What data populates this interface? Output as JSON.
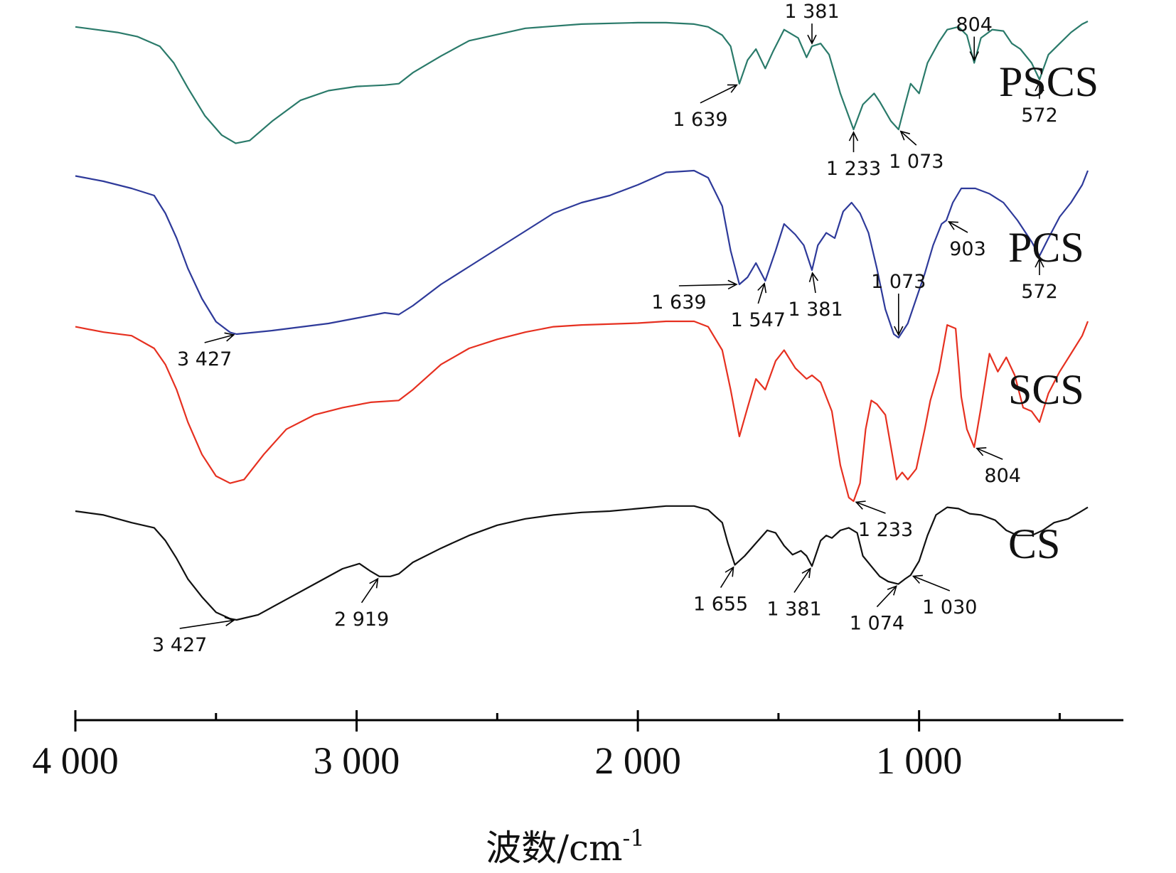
{
  "chart_data": {
    "type": "line",
    "xlabel": "波数/cm",
    "xlabel_sup": "-1",
    "xlim": [
      4000,
      400
    ],
    "reversed_x": true,
    "x_ticks": [
      {
        "value": 4000,
        "label": "4 000"
      },
      {
        "value": 3000,
        "label": "3 000"
      },
      {
        "value": 2000,
        "label": "2 000"
      },
      {
        "value": 1000,
        "label": "1 000"
      }
    ],
    "minor_ticks": [
      3500,
      2500,
      1500,
      500
    ],
    "grid": false,
    "y_axis_shown": false,
    "series": [
      {
        "name": "PSCS",
        "color": "#2a7a6a",
        "points": [
          [
            4000,
            0.96
          ],
          [
            3850,
            0.92
          ],
          [
            3780,
            0.89
          ],
          [
            3700,
            0.82
          ],
          [
            3650,
            0.7
          ],
          [
            3600,
            0.52
          ],
          [
            3540,
            0.32
          ],
          [
            3480,
            0.18
          ],
          [
            3430,
            0.12
          ],
          [
            3380,
            0.14
          ],
          [
            3300,
            0.28
          ],
          [
            3200,
            0.43
          ],
          [
            3100,
            0.5
          ],
          [
            3000,
            0.53
          ],
          [
            2900,
            0.54
          ],
          [
            2850,
            0.55
          ],
          [
            2800,
            0.63
          ],
          [
            2700,
            0.75
          ],
          [
            2600,
            0.86
          ],
          [
            2400,
            0.95
          ],
          [
            2200,
            0.98
          ],
          [
            2000,
            0.99
          ],
          [
            1900,
            0.99
          ],
          [
            1800,
            0.98
          ],
          [
            1750,
            0.96
          ],
          [
            1700,
            0.9
          ],
          [
            1670,
            0.82
          ],
          [
            1639,
            0.55
          ],
          [
            1610,
            0.72
          ],
          [
            1580,
            0.8
          ],
          [
            1547,
            0.66
          ],
          [
            1520,
            0.78
          ],
          [
            1480,
            0.94
          ],
          [
            1430,
            0.88
          ],
          [
            1400,
            0.74
          ],
          [
            1381,
            0.82
          ],
          [
            1350,
            0.84
          ],
          [
            1320,
            0.76
          ],
          [
            1280,
            0.48
          ],
          [
            1233,
            0.22
          ],
          [
            1200,
            0.4
          ],
          [
            1160,
            0.48
          ],
          [
            1140,
            0.42
          ],
          [
            1100,
            0.28
          ],
          [
            1073,
            0.22
          ],
          [
            1050,
            0.4
          ],
          [
            1030,
            0.55
          ],
          [
            1000,
            0.48
          ],
          [
            970,
            0.7
          ],
          [
            930,
            0.85
          ],
          [
            900,
            0.94
          ],
          [
            860,
            0.96
          ],
          [
            830,
            0.9
          ],
          [
            804,
            0.7
          ],
          [
            780,
            0.88
          ],
          [
            740,
            0.94
          ],
          [
            700,
            0.93
          ],
          [
            670,
            0.84
          ],
          [
            640,
            0.8
          ],
          [
            600,
            0.7
          ],
          [
            572,
            0.58
          ],
          [
            540,
            0.76
          ],
          [
            500,
            0.84
          ],
          [
            460,
            0.92
          ],
          [
            420,
            0.98
          ],
          [
            400,
            1.0
          ]
        ]
      },
      {
        "name": "PCS",
        "color": "#2e3a9a",
        "points": [
          [
            4000,
            0.97
          ],
          [
            3900,
            0.94
          ],
          [
            3800,
            0.9
          ],
          [
            3720,
            0.86
          ],
          [
            3680,
            0.76
          ],
          [
            3640,
            0.62
          ],
          [
            3600,
            0.45
          ],
          [
            3550,
            0.28
          ],
          [
            3500,
            0.15
          ],
          [
            3450,
            0.09
          ],
          [
            3427,
            0.08
          ],
          [
            3300,
            0.1
          ],
          [
            3100,
            0.14
          ],
          [
            3000,
            0.17
          ],
          [
            2900,
            0.2
          ],
          [
            2850,
            0.19
          ],
          [
            2800,
            0.24
          ],
          [
            2700,
            0.36
          ],
          [
            2600,
            0.46
          ],
          [
            2500,
            0.56
          ],
          [
            2400,
            0.66
          ],
          [
            2300,
            0.76
          ],
          [
            2200,
            0.82
          ],
          [
            2100,
            0.86
          ],
          [
            2000,
            0.92
          ],
          [
            1900,
            0.99
          ],
          [
            1800,
            1.0
          ],
          [
            1750,
            0.96
          ],
          [
            1700,
            0.8
          ],
          [
            1670,
            0.55
          ],
          [
            1639,
            0.36
          ],
          [
            1610,
            0.4
          ],
          [
            1580,
            0.48
          ],
          [
            1547,
            0.38
          ],
          [
            1510,
            0.55
          ],
          [
            1480,
            0.7
          ],
          [
            1440,
            0.64
          ],
          [
            1410,
            0.58
          ],
          [
            1381,
            0.44
          ],
          [
            1360,
            0.58
          ],
          [
            1330,
            0.65
          ],
          [
            1300,
            0.62
          ],
          [
            1270,
            0.77
          ],
          [
            1240,
            0.82
          ],
          [
            1210,
            0.76
          ],
          [
            1180,
            0.65
          ],
          [
            1150,
            0.45
          ],
          [
            1120,
            0.22
          ],
          [
            1090,
            0.08
          ],
          [
            1073,
            0.06
          ],
          [
            1040,
            0.14
          ],
          [
            1010,
            0.28
          ],
          [
            980,
            0.42
          ],
          [
            950,
            0.58
          ],
          [
            920,
            0.7
          ],
          [
            903,
            0.72
          ],
          [
            880,
            0.82
          ],
          [
            850,
            0.9
          ],
          [
            800,
            0.9
          ],
          [
            750,
            0.87
          ],
          [
            700,
            0.82
          ],
          [
            650,
            0.72
          ],
          [
            600,
            0.6
          ],
          [
            572,
            0.52
          ],
          [
            540,
            0.62
          ],
          [
            500,
            0.74
          ],
          [
            460,
            0.82
          ],
          [
            420,
            0.92
          ],
          [
            400,
            1.0
          ]
        ]
      },
      {
        "name": "SCS",
        "color": "#e63020",
        "points": [
          [
            4000,
            0.97
          ],
          [
            3900,
            0.94
          ],
          [
            3800,
            0.92
          ],
          [
            3720,
            0.85
          ],
          [
            3680,
            0.76
          ],
          [
            3640,
            0.62
          ],
          [
            3600,
            0.44
          ],
          [
            3550,
            0.26
          ],
          [
            3500,
            0.14
          ],
          [
            3450,
            0.1
          ],
          [
            3400,
            0.12
          ],
          [
            3330,
            0.26
          ],
          [
            3250,
            0.4
          ],
          [
            3150,
            0.48
          ],
          [
            3050,
            0.52
          ],
          [
            2950,
            0.55
          ],
          [
            2850,
            0.56
          ],
          [
            2800,
            0.62
          ],
          [
            2700,
            0.76
          ],
          [
            2600,
            0.85
          ],
          [
            2500,
            0.9
          ],
          [
            2400,
            0.94
          ],
          [
            2300,
            0.97
          ],
          [
            2200,
            0.98
          ],
          [
            2000,
            0.99
          ],
          [
            1900,
            1.0
          ],
          [
            1800,
            1.0
          ],
          [
            1750,
            0.97
          ],
          [
            1700,
            0.84
          ],
          [
            1670,
            0.62
          ],
          [
            1639,
            0.36
          ],
          [
            1610,
            0.52
          ],
          [
            1580,
            0.68
          ],
          [
            1547,
            0.62
          ],
          [
            1510,
            0.78
          ],
          [
            1480,
            0.84
          ],
          [
            1440,
            0.74
          ],
          [
            1400,
            0.68
          ],
          [
            1381,
            0.7
          ],
          [
            1350,
            0.66
          ],
          [
            1310,
            0.5
          ],
          [
            1280,
            0.2
          ],
          [
            1250,
            0.02
          ],
          [
            1233,
            0.0
          ],
          [
            1210,
            0.1
          ],
          [
            1190,
            0.4
          ],
          [
            1170,
            0.56
          ],
          [
            1150,
            0.54
          ],
          [
            1120,
            0.48
          ],
          [
            1100,
            0.3
          ],
          [
            1080,
            0.12
          ],
          [
            1060,
            0.16
          ],
          [
            1040,
            0.12
          ],
          [
            1010,
            0.18
          ],
          [
            980,
            0.4
          ],
          [
            960,
            0.56
          ],
          [
            930,
            0.72
          ],
          [
            900,
            0.98
          ],
          [
            870,
            0.96
          ],
          [
            850,
            0.58
          ],
          [
            830,
            0.4
          ],
          [
            804,
            0.3
          ],
          [
            780,
            0.52
          ],
          [
            750,
            0.82
          ],
          [
            720,
            0.72
          ],
          [
            690,
            0.8
          ],
          [
            660,
            0.7
          ],
          [
            630,
            0.52
          ],
          [
            600,
            0.5
          ],
          [
            572,
            0.44
          ],
          [
            540,
            0.6
          ],
          [
            500,
            0.72
          ],
          [
            460,
            0.82
          ],
          [
            420,
            0.92
          ],
          [
            400,
            1.0
          ]
        ]
      },
      {
        "name": "CS",
        "color": "#111111",
        "points": [
          [
            4000,
            0.95
          ],
          [
            3900,
            0.92
          ],
          [
            3800,
            0.86
          ],
          [
            3720,
            0.82
          ],
          [
            3680,
            0.72
          ],
          [
            3640,
            0.58
          ],
          [
            3600,
            0.42
          ],
          [
            3550,
            0.28
          ],
          [
            3500,
            0.16
          ],
          [
            3450,
            0.11
          ],
          [
            3427,
            0.1
          ],
          [
            3350,
            0.14
          ],
          [
            3250,
            0.26
          ],
          [
            3150,
            0.38
          ],
          [
            3050,
            0.5
          ],
          [
            2990,
            0.54
          ],
          [
            2950,
            0.48
          ],
          [
            2919,
            0.44
          ],
          [
            2880,
            0.44
          ],
          [
            2850,
            0.46
          ],
          [
            2800,
            0.55
          ],
          [
            2700,
            0.66
          ],
          [
            2600,
            0.76
          ],
          [
            2500,
            0.84
          ],
          [
            2400,
            0.89
          ],
          [
            2300,
            0.92
          ],
          [
            2200,
            0.94
          ],
          [
            2100,
            0.95
          ],
          [
            2000,
            0.97
          ],
          [
            1900,
            0.99
          ],
          [
            1800,
            0.99
          ],
          [
            1750,
            0.96
          ],
          [
            1700,
            0.86
          ],
          [
            1680,
            0.7
          ],
          [
            1655,
            0.53
          ],
          [
            1620,
            0.6
          ],
          [
            1580,
            0.7
          ],
          [
            1540,
            0.8
          ],
          [
            1510,
            0.78
          ],
          [
            1480,
            0.68
          ],
          [
            1450,
            0.61
          ],
          [
            1420,
            0.64
          ],
          [
            1400,
            0.6
          ],
          [
            1381,
            0.52
          ],
          [
            1350,
            0.72
          ],
          [
            1330,
            0.76
          ],
          [
            1310,
            0.74
          ],
          [
            1280,
            0.8
          ],
          [
            1250,
            0.82
          ],
          [
            1220,
            0.78
          ],
          [
            1200,
            0.6
          ],
          [
            1170,
            0.52
          ],
          [
            1140,
            0.44
          ],
          [
            1110,
            0.4
          ],
          [
            1074,
            0.38
          ],
          [
            1050,
            0.42
          ],
          [
            1030,
            0.45
          ],
          [
            1000,
            0.56
          ],
          [
            970,
            0.76
          ],
          [
            940,
            0.92
          ],
          [
            900,
            0.98
          ],
          [
            860,
            0.97
          ],
          [
            820,
            0.93
          ],
          [
            780,
            0.92
          ],
          [
            730,
            0.88
          ],
          [
            690,
            0.8
          ],
          [
            650,
            0.76
          ],
          [
            600,
            0.76
          ],
          [
            560,
            0.8
          ],
          [
            520,
            0.86
          ],
          [
            470,
            0.89
          ],
          [
            430,
            0.94
          ],
          [
            400,
            0.98
          ]
        ]
      }
    ],
    "annotations": [
      {
        "series": "PSCS",
        "label": "1 639",
        "x": 1639
      },
      {
        "series": "PSCS",
        "label": "1 381",
        "x": 1381
      },
      {
        "series": "PSCS",
        "label": "1 233",
        "x": 1233
      },
      {
        "series": "PSCS",
        "label": "1 073",
        "x": 1073
      },
      {
        "series": "PSCS",
        "label": "804",
        "x": 804
      },
      {
        "series": "PSCS",
        "label": "572",
        "x": 572
      },
      {
        "series": "PCS",
        "label": "3 427",
        "x": 3427
      },
      {
        "series": "PCS",
        "label": "1 639",
        "x": 1639
      },
      {
        "series": "PCS",
        "label": "1 547",
        "x": 1547
      },
      {
        "series": "PCS",
        "label": "1 381",
        "x": 1381
      },
      {
        "series": "PCS",
        "label": "1 073",
        "x": 1073
      },
      {
        "series": "PCS",
        "label": "903",
        "x": 903
      },
      {
        "series": "PCS",
        "label": "572",
        "x": 572
      },
      {
        "series": "SCS",
        "label": "1 233",
        "x": 1233
      },
      {
        "series": "SCS",
        "label": "804",
        "x": 804
      },
      {
        "series": "CS",
        "label": "3 427",
        "x": 3427
      },
      {
        "series": "CS",
        "label": "2 919",
        "x": 2919
      },
      {
        "series": "CS",
        "label": "1 655",
        "x": 1655
      },
      {
        "series": "CS",
        "label": "1 381",
        "x": 1381
      },
      {
        "series": "CS",
        "label": "1 074",
        "x": 1074
      },
      {
        "series": "CS",
        "label": "1 030",
        "x": 1030
      }
    ]
  }
}
